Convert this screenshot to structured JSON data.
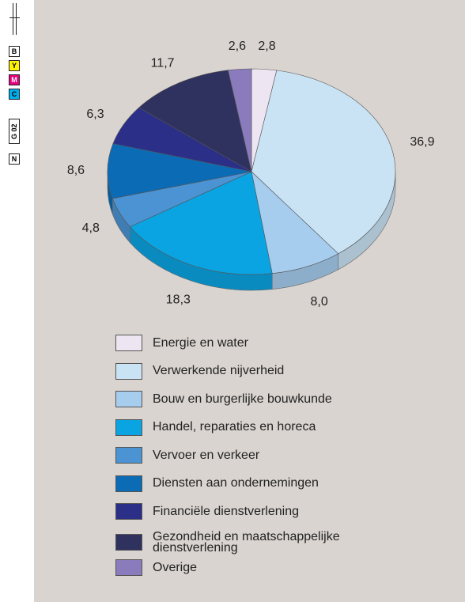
{
  "print_marks": [
    "B",
    "Y",
    "M",
    "C",
    "G 02",
    "N"
  ],
  "chart_data": {
    "type": "pie",
    "categories": [
      "Energie en water",
      "Verwerkende nijverheid",
      "Bouw en burgerlijke bouwkunde",
      "Handel, reparaties en horeca",
      "Vervoer en verkeer",
      "Diensten aan ondernemingen",
      "Financiële dienstverlening",
      "Gezondheid en maatschappelijke dienstverlening",
      "Overige"
    ],
    "values": [
      2.8,
      36.9,
      8.0,
      18.3,
      4.8,
      8.6,
      6.3,
      11.7,
      2.6
    ],
    "value_labels": [
      "2,8",
      "36,9",
      "8,0",
      "18,3",
      "4,8",
      "8,6",
      "6,3",
      "11,7",
      "2,6"
    ],
    "colors": [
      "#ede6f2",
      "#c9e3f5",
      "#a6cdee",
      "#0aa4e2",
      "#4b93d3",
      "#0c6bb5",
      "#2b2f88",
      "#2f315e",
      "#8a7bbd"
    ],
    "legend": "bottom"
  }
}
